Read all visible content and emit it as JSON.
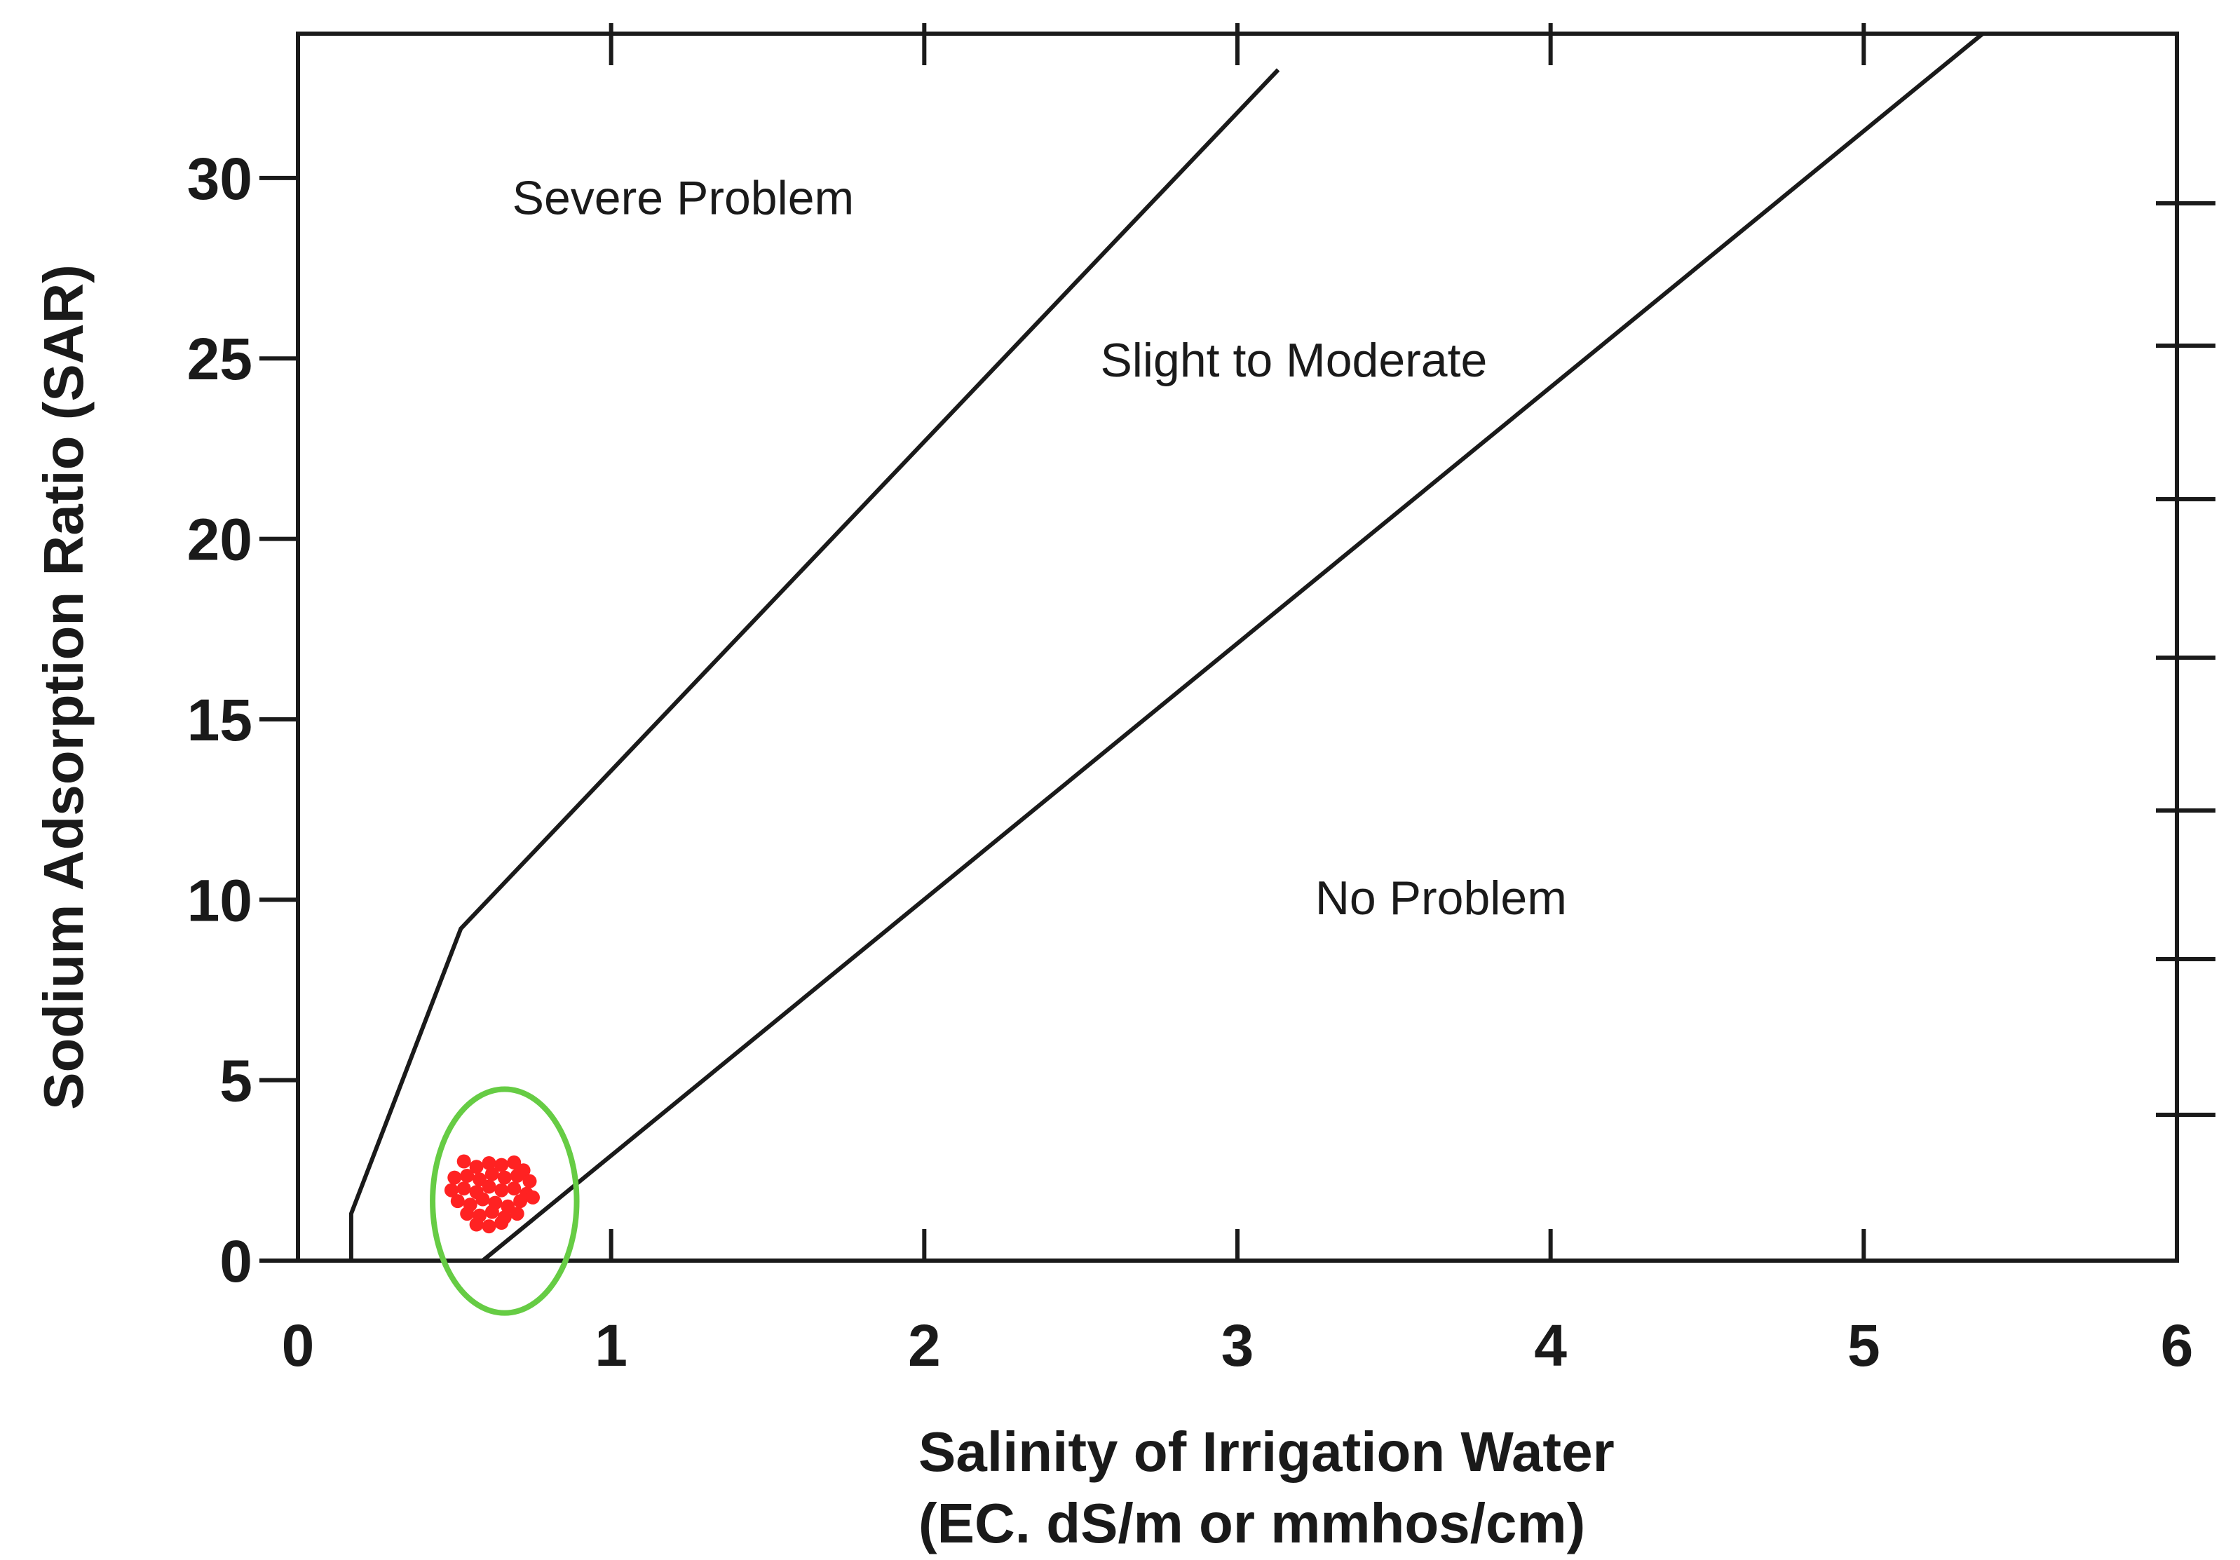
{
  "chart_data": {
    "type": "scatter",
    "title": "",
    "xlabel": "Salinity of Irrigation Water",
    "xlabel_line2": "(EC. dS/m or mmhos/cm)",
    "ylabel": "Sodium Adsorption Ratio (SAR)",
    "xlim": [
      0,
      6
    ],
    "ylim": [
      0,
      34
    ],
    "x_ticks": [
      0,
      1,
      2,
      3,
      4,
      5,
      6
    ],
    "x_tick_labels": [
      "0",
      "1",
      "2",
      "3",
      "4",
      "5",
      "6"
    ],
    "y_ticks": [
      0,
      5,
      10,
      15,
      20,
      25,
      30
    ],
    "y_tick_labels": [
      "0",
      "5",
      "10",
      "15",
      "20",
      "25",
      "30"
    ],
    "grid": false,
    "boundary_lines": [
      {
        "name": "severe-boundary",
        "points": [
          [
            0.17,
            0
          ],
          [
            0.17,
            1.3
          ],
          [
            0.52,
            9.2
          ],
          [
            3.13,
            33.0
          ]
        ]
      },
      {
        "name": "no-problem-boundary",
        "points": [
          [
            0.59,
            0
          ],
          [
            5.38,
            34.0
          ]
        ]
      }
    ],
    "regions": [
      {
        "label": "Severe Problem",
        "x": 1.23,
        "y": 29.0
      },
      {
        "label": "Slight to Moderate",
        "x": 3.18,
        "y": 24.5
      },
      {
        "label": "No Problem",
        "x": 3.65,
        "y": 9.6
      }
    ],
    "highlight_circle": {
      "cx": 0.66,
      "cy": 1.65,
      "rx": 0.23,
      "ry": 3.1,
      "color": "#66cc44"
    },
    "series": [
      {
        "name": "samples",
        "color": "#ff2222",
        "points": [
          [
            0.53,
            2.75
          ],
          [
            0.57,
            2.6
          ],
          [
            0.61,
            2.7
          ],
          [
            0.65,
            2.65
          ],
          [
            0.69,
            2.72
          ],
          [
            0.72,
            2.5
          ],
          [
            0.5,
            2.3
          ],
          [
            0.54,
            2.35
          ],
          [
            0.58,
            2.25
          ],
          [
            0.62,
            2.4
          ],
          [
            0.66,
            2.3
          ],
          [
            0.7,
            2.35
          ],
          [
            0.74,
            2.2
          ],
          [
            0.49,
            1.95
          ],
          [
            0.53,
            2.0
          ],
          [
            0.57,
            1.9
          ],
          [
            0.61,
            2.05
          ],
          [
            0.65,
            1.95
          ],
          [
            0.69,
            2.0
          ],
          [
            0.73,
            1.85
          ],
          [
            0.51,
            1.65
          ],
          [
            0.55,
            1.55
          ],
          [
            0.59,
            1.7
          ],
          [
            0.63,
            1.6
          ],
          [
            0.67,
            1.5
          ],
          [
            0.71,
            1.65
          ],
          [
            0.75,
            1.75
          ],
          [
            0.54,
            1.3
          ],
          [
            0.58,
            1.25
          ],
          [
            0.62,
            1.35
          ],
          [
            0.66,
            1.2
          ],
          [
            0.7,
            1.3
          ],
          [
            0.57,
            1.0
          ],
          [
            0.61,
            0.95
          ],
          [
            0.65,
            1.05
          ]
        ]
      }
    ]
  }
}
